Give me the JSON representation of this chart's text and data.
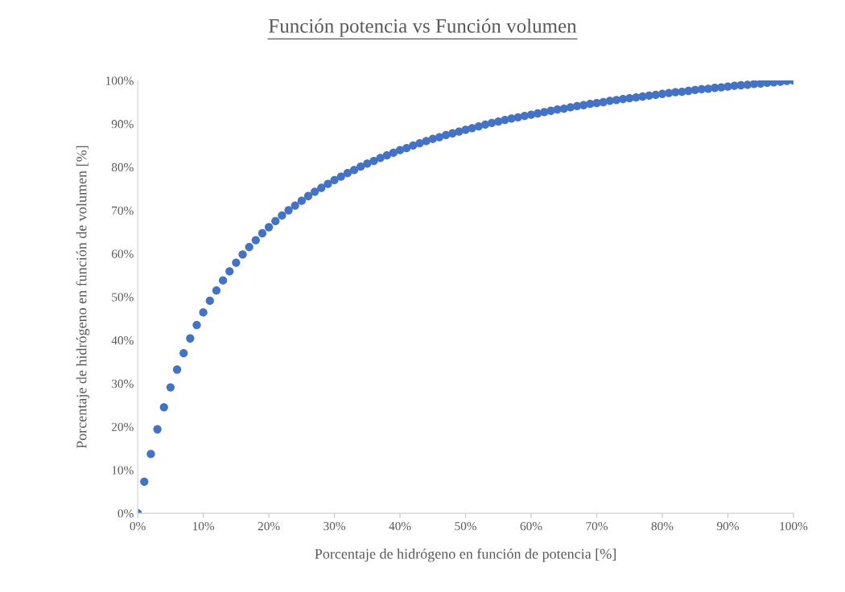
{
  "chart_data": {
    "type": "scatter",
    "title": "Función potencia vs Función volumen",
    "xlabel": "Porcentaje de hidrógeno en función de potencia [%]",
    "ylabel": "Porcentaje de hidrógeno en función de volumen [%]",
    "x": [
      0,
      1,
      2,
      3,
      4,
      5,
      6,
      7,
      8,
      9,
      10,
      11,
      12,
      13,
      14,
      15,
      16,
      17,
      18,
      19,
      20,
      21,
      22,
      23,
      24,
      25,
      26,
      27,
      28,
      29,
      30,
      31,
      32,
      33,
      34,
      35,
      36,
      37,
      38,
      39,
      40,
      41,
      42,
      43,
      44,
      45,
      46,
      47,
      48,
      49,
      50,
      51,
      52,
      53,
      54,
      55,
      56,
      57,
      58,
      59,
      60,
      61,
      62,
      63,
      64,
      65,
      66,
      67,
      68,
      69,
      70,
      71,
      72,
      73,
      74,
      75,
      76,
      77,
      78,
      79,
      80,
      81,
      82,
      83,
      84,
      85,
      86,
      87,
      88,
      89,
      90,
      91,
      92,
      93,
      94,
      95,
      96,
      97,
      98,
      99,
      100
    ],
    "series": [
      {
        "color": "#4472c4",
        "values": [
          0,
          7.3,
          13.7,
          19.4,
          24.5,
          29.1,
          33.2,
          37.0,
          40.4,
          43.5,
          46.4,
          49.1,
          51.5,
          53.8,
          55.9,
          57.9,
          59.8,
          61.5,
          63.1,
          64.7,
          66.1,
          67.5,
          68.8,
          70.0,
          71.1,
          72.2,
          73.3,
          74.3,
          75.2,
          76.1,
          77.0,
          77.8,
          78.6,
          79.3,
          80.1,
          80.8,
          81.4,
          82.1,
          82.7,
          83.3,
          83.9,
          84.4,
          85.0,
          85.5,
          86.0,
          86.5,
          86.9,
          87.4,
          87.8,
          88.2,
          88.6,
          89.0,
          89.4,
          89.8,
          90.2,
          90.5,
          90.9,
          91.2,
          91.5,
          91.8,
          92.1,
          92.4,
          92.7,
          93.0,
          93.3,
          93.5,
          93.8,
          94.1,
          94.3,
          94.6,
          94.8,
          95.0,
          95.3,
          95.5,
          95.7,
          95.9,
          96.1,
          96.3,
          96.5,
          96.7,
          96.9,
          97.1,
          97.3,
          97.4,
          97.6,
          97.8,
          98.0,
          98.1,
          98.3,
          98.4,
          98.6,
          98.8,
          98.9,
          99.0,
          99.2,
          99.3,
          99.5,
          99.6,
          99.7,
          99.9,
          100
        ]
      }
    ],
    "xlim": [
      0,
      100
    ],
    "ylim": [
      0,
      100
    ],
    "xticks": [
      {
        "value": 0,
        "label": "0%"
      },
      {
        "value": 10,
        "label": "10%"
      },
      {
        "value": 20,
        "label": "20%"
      },
      {
        "value": 30,
        "label": "30%"
      },
      {
        "value": 40,
        "label": "40%"
      },
      {
        "value": 50,
        "label": "50%"
      },
      {
        "value": 60,
        "label": "60%"
      },
      {
        "value": 70,
        "label": "70%"
      },
      {
        "value": 80,
        "label": "80%"
      },
      {
        "value": 90,
        "label": "90%"
      },
      {
        "value": 100,
        "label": "100%"
      }
    ],
    "yticks": [
      {
        "value": 0,
        "label": "0%"
      },
      {
        "value": 10,
        "label": "10%"
      },
      {
        "value": 20,
        "label": "20%"
      },
      {
        "value": 30,
        "label": "30%"
      },
      {
        "value": 40,
        "label": "40%"
      },
      {
        "value": 50,
        "label": "50%"
      },
      {
        "value": 60,
        "label": "60%"
      },
      {
        "value": 70,
        "label": "70%"
      },
      {
        "value": 80,
        "label": "80%"
      },
      {
        "value": 90,
        "label": "90%"
      },
      {
        "value": 100,
        "label": "100%"
      }
    ],
    "grid": false,
    "marker": "circle",
    "legend": false
  }
}
